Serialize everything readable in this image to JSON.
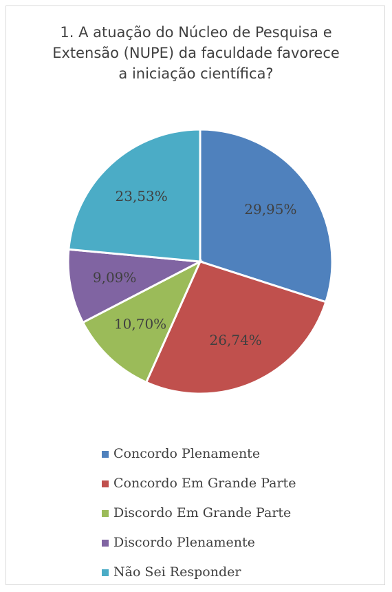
{
  "chart_data": {
    "type": "pie",
    "title": "1. A atuação do Núcleo de Pesquisa e Extensão (NUPE) da faculdade favorece a iniciação científica?",
    "categories": [
      "Concordo Plenamente",
      "Concordo Em Grande Parte",
      "Discordo Em Grande Parte",
      "Discordo Plenamente",
      "Não Sei Responder"
    ],
    "values": [
      29.95,
      26.74,
      10.7,
      9.09,
      23.53
    ],
    "value_labels": [
      "29,95%",
      "26,74%",
      "10,70%",
      "9,09%",
      "23,53%"
    ],
    "colors": [
      "#4f81bd",
      "#c0504d",
      "#9bbb59",
      "#8064a2",
      "#4bacc6"
    ],
    "legend": "bottom"
  }
}
